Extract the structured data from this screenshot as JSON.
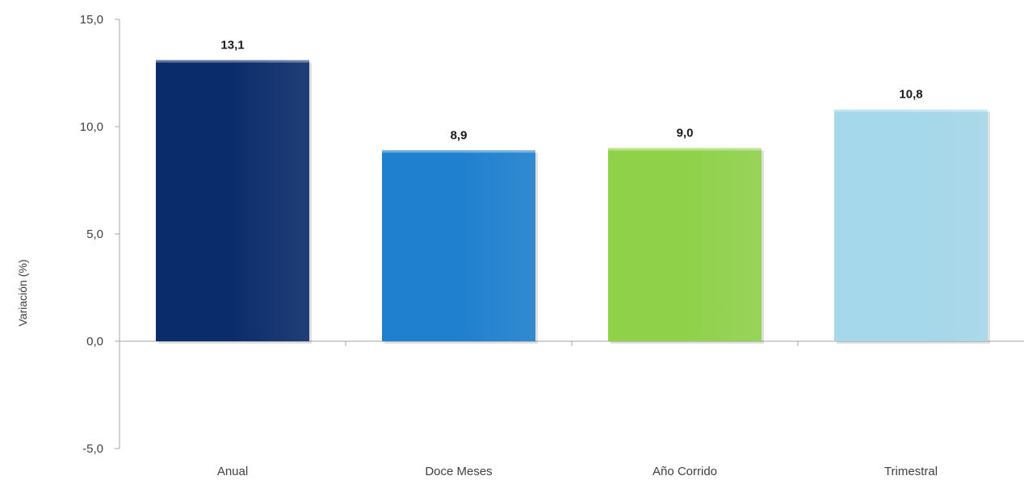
{
  "chart_data": {
    "type": "bar",
    "categories": [
      "Anual",
      "Doce Meses",
      "Año Corrido",
      "Trimestral"
    ],
    "values": [
      13.1,
      8.9,
      9.0,
      10.8
    ],
    "value_labels": [
      "13,1",
      "8,9",
      "9,0",
      "10,8"
    ],
    "colors": [
      "#0b2c6b",
      "#1f80cf",
      "#8fd24a",
      "#a4d8ea"
    ],
    "ylabel": "Variación (%)",
    "ylim": [
      -5,
      15
    ],
    "yticks": [
      -5,
      0,
      5,
      10,
      15
    ],
    "ytick_labels": [
      "-5,0",
      "0,0",
      "5,0",
      "10,0",
      "15,0"
    ],
    "grid": false,
    "legend": "none"
  }
}
